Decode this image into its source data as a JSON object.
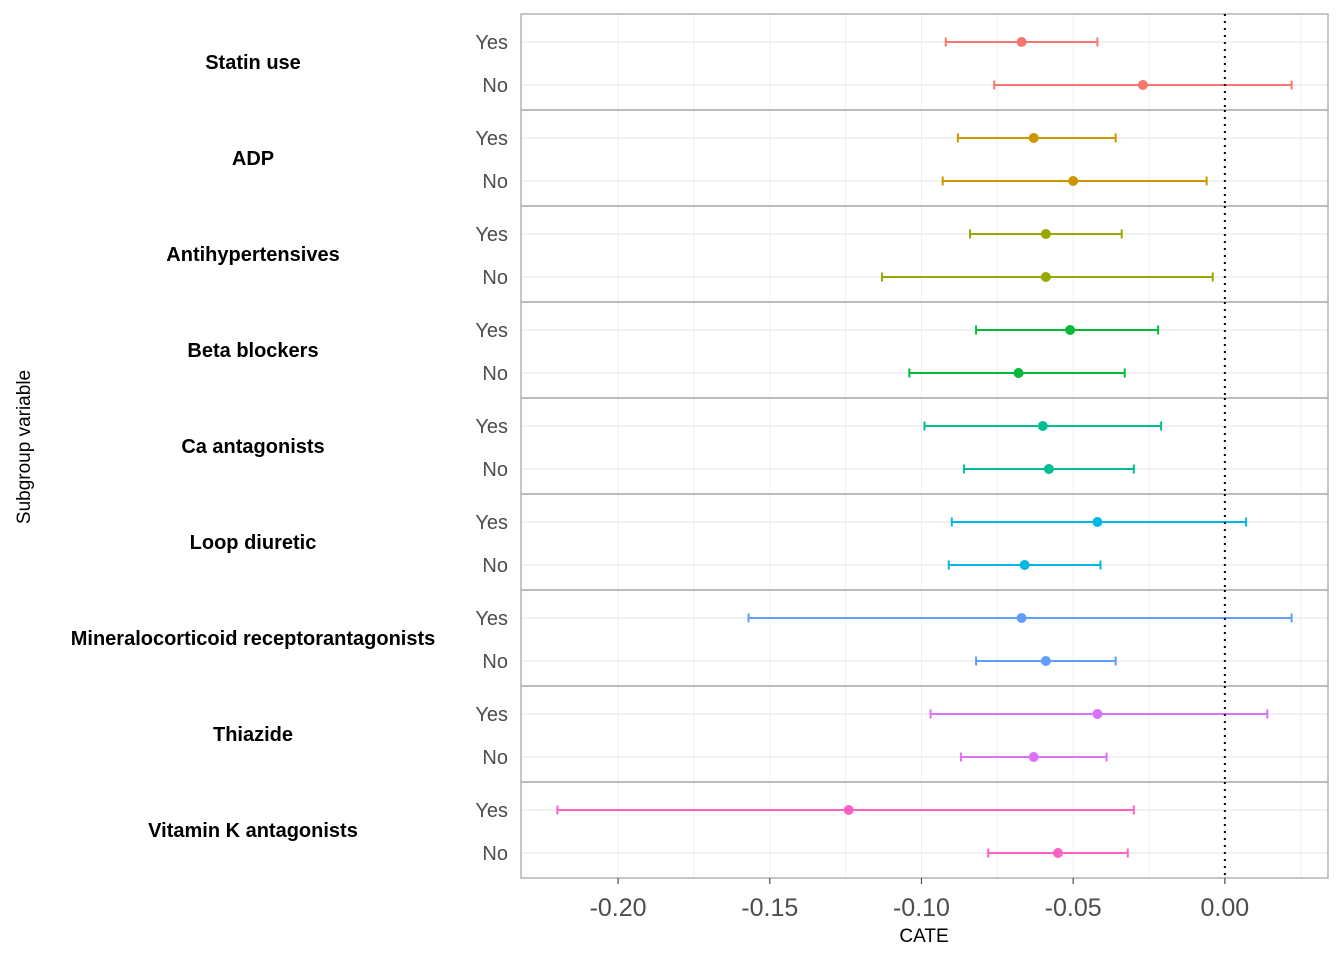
{
  "chart_data": {
    "type": "forest",
    "xlabel": "CATE",
    "ylabel": "Subgroup variable",
    "xlim": [
      -0.232,
      0.034
    ],
    "x_ticks": [
      -0.2,
      -0.15,
      -0.1,
      -0.05,
      0.0
    ],
    "x_tick_labels": [
      "-0.20",
      "-0.15",
      "-0.10",
      "-0.05",
      "0.00"
    ],
    "reference_line": 0.0,
    "grid": true,
    "groups": [
      {
        "name": "Statin use",
        "color": "#F8766D",
        "rows": [
          {
            "label": "Yes",
            "estimate": -0.067,
            "lower": -0.092,
            "upper": -0.042
          },
          {
            "label": "No",
            "estimate": -0.027,
            "lower": -0.076,
            "upper": 0.022
          }
        ]
      },
      {
        "name": "ADP",
        "color": "#CD9600",
        "rows": [
          {
            "label": "Yes",
            "estimate": -0.063,
            "lower": -0.088,
            "upper": -0.036
          },
          {
            "label": "No",
            "estimate": -0.05,
            "lower": -0.093,
            "upper": -0.006
          }
        ]
      },
      {
        "name": "Antihypertensives",
        "color": "#9AA700",
        "rows": [
          {
            "label": "Yes",
            "estimate": -0.059,
            "lower": -0.084,
            "upper": -0.034
          },
          {
            "label": "No",
            "estimate": -0.059,
            "lower": -0.113,
            "upper": -0.004
          }
        ]
      },
      {
        "name": "Beta blockers",
        "color": "#00BA38",
        "rows": [
          {
            "label": "Yes",
            "estimate": -0.051,
            "lower": -0.082,
            "upper": -0.022
          },
          {
            "label": "No",
            "estimate": -0.068,
            "lower": -0.104,
            "upper": -0.033
          }
        ]
      },
      {
        "name": "Ca antagonists",
        "color": "#00BE93",
        "rows": [
          {
            "label": "Yes",
            "estimate": -0.06,
            "lower": -0.099,
            "upper": -0.021
          },
          {
            "label": "No",
            "estimate": -0.058,
            "lower": -0.086,
            "upper": -0.03
          }
        ]
      },
      {
        "name": "Loop diuretic",
        "color": "#00B8E5",
        "rows": [
          {
            "label": "Yes",
            "estimate": -0.042,
            "lower": -0.09,
            "upper": 0.007
          },
          {
            "label": "No",
            "estimate": -0.066,
            "lower": -0.091,
            "upper": -0.041
          }
        ]
      },
      {
        "name": "Mineralocorticoid receptorantagonists",
        "color": "#619CFF",
        "rows": [
          {
            "label": "Yes",
            "estimate": -0.067,
            "lower": -0.157,
            "upper": 0.022
          },
          {
            "label": "No",
            "estimate": -0.059,
            "lower": -0.082,
            "upper": -0.036
          }
        ]
      },
      {
        "name": "Thiazide",
        "color": "#DB72FB",
        "rows": [
          {
            "label": "Yes",
            "estimate": -0.042,
            "lower": -0.097,
            "upper": 0.014
          },
          {
            "label": "No",
            "estimate": -0.063,
            "lower": -0.087,
            "upper": -0.039
          }
        ]
      },
      {
        "name": "Vitamin K antagonists",
        "color": "#FF61C3",
        "rows": [
          {
            "label": "Yes",
            "estimate": -0.124,
            "lower": -0.22,
            "upper": -0.03
          },
          {
            "label": "No",
            "estimate": -0.055,
            "lower": -0.078,
            "upper": -0.032
          }
        ]
      }
    ]
  }
}
